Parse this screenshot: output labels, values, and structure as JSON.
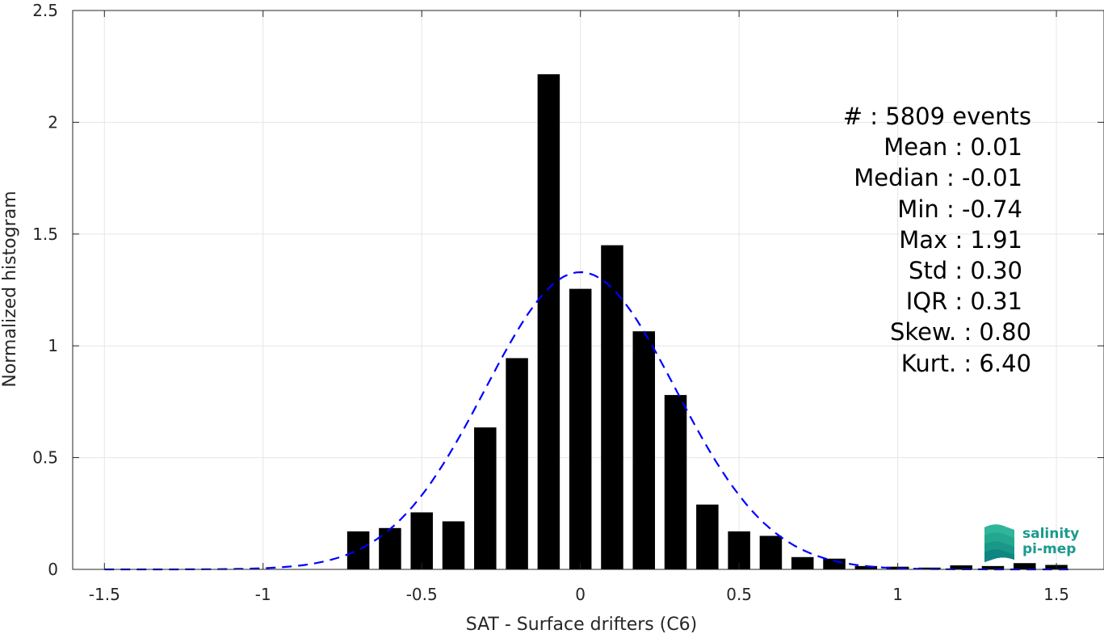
{
  "chart_data": {
    "type": "bar",
    "xlabel": "SAT - Surface drifters (C6)",
    "ylabel": "Normalized histogram",
    "xlim": [
      -1.6,
      1.65
    ],
    "ylim": [
      0,
      2.5
    ],
    "xticks": [
      -1.5,
      -1,
      -0.5,
      0,
      0.5,
      1,
      1.5
    ],
    "xtick_labels": [
      "-1.5",
      "-1",
      "-0.5",
      "0",
      "0.5",
      "1",
      "1.5"
    ],
    "yticks": [
      0,
      0.5,
      1,
      1.5,
      2,
      2.5
    ],
    "ytick_labels": [
      "0",
      "0.5",
      "1",
      "1.5",
      "2",
      "2.5"
    ],
    "grid": true,
    "bar_width": 0.07,
    "bars": {
      "x": [
        -0.7,
        -0.6,
        -0.5,
        -0.4,
        -0.3,
        -0.2,
        -0.1,
        0.0,
        0.1,
        0.2,
        0.3,
        0.4,
        0.5,
        0.6,
        0.7,
        0.8,
        0.9,
        1.0,
        1.1,
        1.2,
        1.3,
        1.4,
        1.5
      ],
      "values": [
        0.17,
        0.185,
        0.255,
        0.215,
        0.635,
        0.945,
        2.215,
        1.255,
        1.45,
        1.065,
        0.78,
        0.29,
        0.17,
        0.15,
        0.055,
        0.048,
        0.015,
        0.012,
        0.008,
        0.018,
        0.015,
        0.028,
        0.02
      ],
      "color": "#000000"
    },
    "fit_curve": {
      "style": "dashed",
      "color": "#0000ff",
      "mean": 0.0,
      "std": 0.3,
      "x_range": [
        -1.5,
        1.55
      ]
    },
    "stats": [
      {
        "text": "#  : 5809 events",
        "anchor": "end",
        "xpos": 1277,
        "ypos": 154
      },
      {
        "text": "Mean : 0.01",
        "anchor": "end",
        "xpos": 1266,
        "ypos": 192
      },
      {
        "text": "Median : -0.01",
        "anchor": "end",
        "xpos": 1266,
        "ypos": 230
      },
      {
        "text": "Min : -0.74",
        "anchor": "end",
        "xpos": 1266,
        "ypos": 269
      },
      {
        "text": "Max : 1.91",
        "anchor": "end",
        "xpos": 1266,
        "ypos": 307
      },
      {
        "text": "Std : 0.30",
        "anchor": "end",
        "xpos": 1266,
        "ypos": 345
      },
      {
        "text": "IQR : 0.31",
        "anchor": "end",
        "xpos": 1266,
        "ypos": 383
      },
      {
        "text": "Skew. : 0.80",
        "anchor": "end",
        "xpos": 1277,
        "ypos": 421
      },
      {
        "text": "Kurt. : 6.40",
        "anchor": "end",
        "xpos": 1277,
        "ypos": 460
      }
    ]
  },
  "logo": {
    "line1": "salinity",
    "line2": "pi-mep",
    "color": "#1a9a8c"
  }
}
